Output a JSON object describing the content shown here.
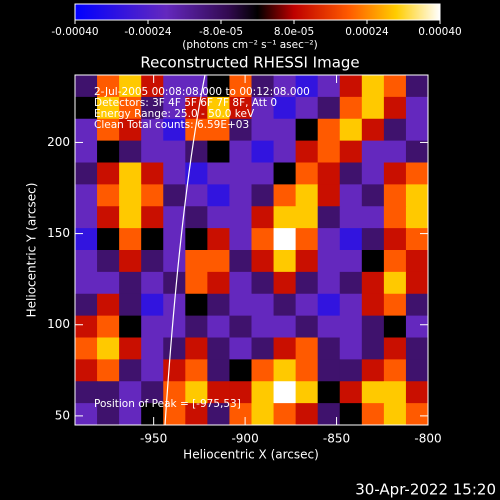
{
  "chart_data": {
    "type": "heatmap",
    "title": "Reconstructed RHESSI Image",
    "xlabel": "Heliocentric X (arcsec)",
    "ylabel": "Heliocentric Y (arcsec)",
    "xlim": [
      -993,
      -800
    ],
    "ylim": [
      45,
      237
    ],
    "xticks": [
      -950,
      -900,
      -850,
      -800
    ],
    "yticks": [
      50,
      100,
      150,
      200
    ],
    "clim": [
      -0.0004,
      0.0004
    ],
    "cticks": [
      {
        "value": -0.0004,
        "label": "-0.00040"
      },
      {
        "value": -0.00024,
        "label": "-0.00024"
      },
      {
        "value": -8e-05,
        "label": "-8.0e-05"
      },
      {
        "value": 8e-05,
        "label": "8.0e-05"
      },
      {
        "value": 0.00024,
        "label": "0.00024"
      },
      {
        "value": 0.0004,
        "label": "0.00040"
      }
    ],
    "clabel": "(photons cm⁻² s⁻¹ asec⁻²)",
    "annotations": [
      "2-Jul-2005 00:08:08.000 to 00:12:08.000",
      "Detectors: 3F 4F 5F 6F 7F 8F, Att 0",
      "Energy Range: 25.0 - 50.0 keV",
      "Clean     Total counts: 6.59E+03"
    ],
    "peak_note": "Position of Peak = [-975,53]",
    "timestamp": "30-Apr-2022 15:20",
    "z": [
      [
        -0.0001,
        0.0002,
        0.0003,
        0.0001,
        -0.0002,
        -0.0002,
        0,
        0.0002,
        -0.0001,
        -0.0002,
        -0.0003,
        -0.0002,
        0.0001,
        0.0003,
        0.0002,
        -0.0001
      ],
      [
        0,
        0.0003,
        0.0002,
        -0.0001,
        -0.0002,
        0.0001,
        0.0003,
        0.0001,
        -0.0002,
        -0.0003,
        -0.0002,
        -0.0001,
        0.0002,
        0.0003,
        0.0001,
        -0.0002
      ],
      [
        -0.0002,
        0.0002,
        0.0001,
        -0.0002,
        -0.0003,
        0.0002,
        0.0002,
        -0.0001,
        -0.0002,
        -0.0002,
        0,
        0.0002,
        0.0003,
        0.0001,
        -0.0001,
        -0.0002
      ],
      [
        -0.0002,
        0,
        -0.0001,
        -0.0002,
        -0.0002,
        -0.0001,
        0,
        -0.0002,
        -0.0003,
        -0.0002,
        0.0001,
        0.0002,
        0.0001,
        -0.0002,
        -0.0002,
        -0.0001
      ],
      [
        -0.0001,
        0.0001,
        0.0003,
        0.0001,
        -0.0002,
        -0.0003,
        -0.0002,
        -0.0002,
        -0.0002,
        0,
        0.0002,
        0.0001,
        -0.0001,
        -0.0002,
        0.0001,
        0.0002
      ],
      [
        -0.0002,
        0.0002,
        0.0003,
        0.0002,
        -0.0001,
        -0.0002,
        -0.0003,
        -0.0002,
        -0.0001,
        0.0002,
        0.0003,
        0.0001,
        -0.0002,
        -0.0001,
        0.0002,
        0.0003
      ],
      [
        -0.0002,
        0.0001,
        0.0003,
        0.0001,
        -0.0002,
        -0.0001,
        -0.0002,
        -0.0002,
        0.0001,
        0.0003,
        0.0003,
        -0.0001,
        -0.0002,
        -0.0002,
        0.0002,
        0.0003
      ],
      [
        -0.0003,
        0,
        0.0002,
        0,
        -0.0002,
        0,
        0.0001,
        -0.0002,
        0.0002,
        0.0004,
        0.0002,
        -0.0002,
        -0.0003,
        -0.0001,
        0.0001,
        0.0002
      ],
      [
        -0.0002,
        -0.0001,
        0.0001,
        -0.0001,
        -0.0002,
        0.0002,
        0.0002,
        -0.0001,
        0.0001,
        0.0003,
        0.0001,
        -0.0002,
        -0.0002,
        0,
        0.0002,
        0.0001
      ],
      [
        -0.0002,
        -0.0002,
        -0.0001,
        -0.0002,
        -0.0001,
        0.0002,
        0.0001,
        -0.0002,
        -0.0001,
        0.0001,
        -0.0001,
        -0.0002,
        -0.0001,
        0.0001,
        0.0003,
        0.0001
      ],
      [
        -0.0001,
        0.0001,
        -0.0001,
        -0.0003,
        -0.0002,
        0,
        -0.0001,
        -0.0002,
        -0.0002,
        -0.0001,
        -0.0002,
        -0.0003,
        -0.0002,
        0.0001,
        0.0002,
        -0.0001
      ],
      [
        0.0001,
        0.0002,
        0,
        -0.0002,
        -0.0002,
        -0.0001,
        -0.0002,
        -0.0001,
        -0.0002,
        -0.0002,
        -0.0001,
        -0.0002,
        -0.0002,
        -0.0001,
        0,
        -0.0002
      ],
      [
        0.0002,
        0.0003,
        0.0001,
        -0.0002,
        -0.0001,
        0.0001,
        -0.0001,
        -0.0002,
        -0.0001,
        0.0001,
        0.0002,
        -0.0001,
        -0.0002,
        -0.0001,
        0.0001,
        -0.0001
      ],
      [
        0.0001,
        0.0002,
        -0.0001,
        -0.0002,
        0.0001,
        0.0002,
        -0.0001,
        0,
        0.0002,
        0.0003,
        0.0002,
        -0.0001,
        -0.0001,
        0.0001,
        0.0002,
        -0.0001
      ],
      [
        -0.0001,
        -0.0001,
        -0.0002,
        -0.0001,
        0.0002,
        0.0003,
        0.0001,
        0.0001,
        0.0003,
        0.0004,
        0.0003,
        0,
        0.0001,
        0.0003,
        0.0003,
        0.0001
      ],
      [
        -0.0002,
        -0.0001,
        -0.0002,
        0,
        0.0002,
        0.0001,
        -0.0001,
        0.0002,
        0.0003,
        0.0002,
        0.0001,
        -0.0001,
        0,
        0.0002,
        0.0003,
        0.0002
      ]
    ]
  }
}
